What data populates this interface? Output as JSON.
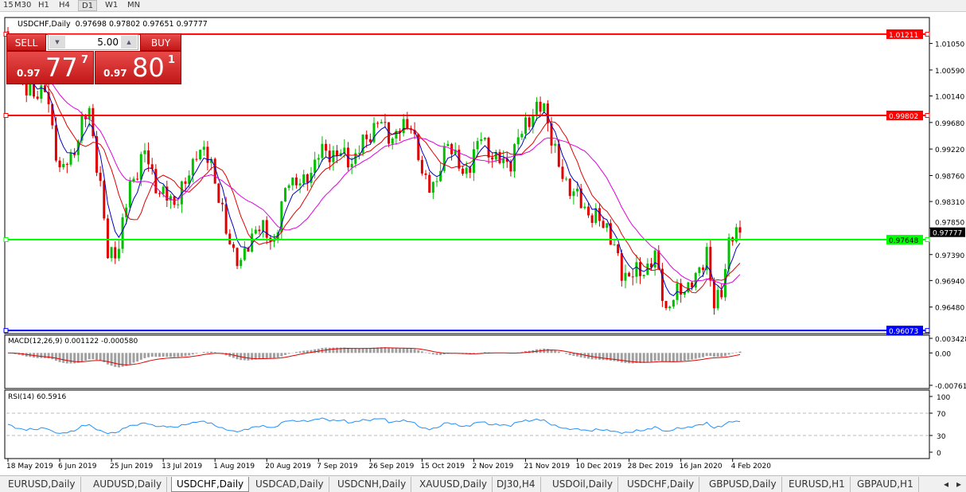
{
  "timeframes": {
    "items": [
      "15",
      "M30",
      "H1",
      "H4",
      "D1",
      "W1",
      "MN"
    ],
    "selected": "D1"
  },
  "chart": {
    "symbol_title": "USDCHF,Daily",
    "ohlc": "0.97698 0.97802 0.97651 0.97777",
    "colors": {
      "bull": "#00c000",
      "bear": "#e00000",
      "ma_fast": "#0000c0",
      "ma_mid": "#e00000",
      "ma_slow": "#e000e0",
      "macd_hist": "#a0a0a0",
      "macd_signal": "#e00000",
      "rsi": "#1e90ff"
    },
    "price_axis": {
      "min": 0.9602,
      "max": 1.015,
      "ticks": [
        "1.01050",
        "1.00590",
        "1.00140",
        "0.99680",
        "0.99220",
        "0.98760",
        "0.98310",
        "0.97850",
        "0.97390",
        "0.96940",
        "0.96480"
      ]
    },
    "hlines": [
      {
        "price": 1.01211,
        "label": "1.01211",
        "color": "#ff0000"
      },
      {
        "price": 0.99802,
        "label": "0.99802",
        "color": "#ff0000"
      },
      {
        "price": 0.97648,
        "label": "0.97648",
        "color": "#00ff00"
      },
      {
        "price": 0.96073,
        "label": "0.96073",
        "color": "#0000ff"
      }
    ],
    "current_price": {
      "price": 0.97777,
      "label": "0.97777"
    },
    "bar_count": 198,
    "closes_by_bar": [
      [
        0,
        1.0108
      ],
      [
        5,
        1.0018
      ],
      [
        10,
        1.0025
      ],
      [
        14,
        0.9887
      ],
      [
        17,
        0.9901
      ],
      [
        20,
        0.997
      ],
      [
        22,
        0.9984
      ],
      [
        25,
        0.9859
      ],
      [
        27,
        0.9734
      ],
      [
        30,
        0.9755
      ],
      [
        33,
        0.9859
      ],
      [
        37,
        0.9915
      ],
      [
        41,
        0.9845
      ],
      [
        45,
        0.9831
      ],
      [
        48,
        0.9859
      ],
      [
        51,
        0.9921
      ],
      [
        55,
        0.9901
      ],
      [
        59,
        0.9776
      ],
      [
        63,
        0.972
      ],
      [
        67,
        0.979
      ],
      [
        72,
        0.9762
      ],
      [
        76,
        0.9873
      ],
      [
        80,
        0.9859
      ],
      [
        84,
        0.9915
      ],
      [
        89,
        0.9915
      ],
      [
        93,
        0.9901
      ],
      [
        100,
        0.997
      ],
      [
        104,
        0.9942
      ],
      [
        109,
        0.997
      ],
      [
        112,
        0.9873
      ],
      [
        116,
        0.9859
      ],
      [
        119,
        0.9942
      ],
      [
        123,
        0.9873
      ],
      [
        128,
        0.9942
      ],
      [
        132,
        0.9901
      ],
      [
        136,
        0.9901
      ],
      [
        140,
        0.997
      ],
      [
        145,
        0.9998
      ],
      [
        149,
        0.9887
      ],
      [
        153,
        0.9845
      ],
      [
        158,
        0.9804
      ],
      [
        162,
        0.979
      ],
      [
        166,
        0.9706
      ],
      [
        171,
        0.9706
      ],
      [
        175,
        0.9734
      ],
      [
        178,
        0.9644
      ],
      [
        182,
        0.9679
      ],
      [
        186,
        0.9693
      ],
      [
        189,
        0.9748
      ],
      [
        191,
        0.9644
      ],
      [
        193,
        0.9679
      ],
      [
        195,
        0.9762
      ],
      [
        198,
        0.9777
      ]
    ]
  },
  "trade_panel": {
    "sell_label": "SELL",
    "buy_label": "BUY",
    "volume": "5.00",
    "sell_prefix": "0.97",
    "sell_big": "77",
    "sell_sup": "7",
    "buy_prefix": "0.97",
    "buy_big": "80",
    "buy_sup": "1"
  },
  "macd": {
    "title": "MACD(12,26,9) 0.001122 -0.000580",
    "ticks": [
      "0.003428",
      "0.00",
      "-0.007615"
    ],
    "max": 0.003428,
    "min": -0.007615
  },
  "rsi": {
    "title": "RSI(14) 60.5916",
    "ticks": [
      "100",
      "70",
      "30",
      "0"
    ],
    "value": 60.5916
  },
  "date_axis": [
    "18 May 2019",
    "6 Jun 2019",
    "25 Jun 2019",
    "13 Jul 2019",
    "1 Aug 2019",
    "20 Aug 2019",
    "7 Sep 2019",
    "26 Sep 2019",
    "15 Oct 2019",
    "2 Nov 2019",
    "21 Nov 2019",
    "10 Dec 2019",
    "28 Dec 2019",
    "16 Jan 2020",
    "4 Feb 2020"
  ],
  "tabs": {
    "items": [
      "EURUSD,Daily",
      "AUDUSD,Daily",
      "USDCHF,Daily",
      "USDCAD,Daily",
      "USDCNH,Daily",
      "XAUUSD,Daily",
      "DJ30,H4",
      "USDOil,Daily",
      "USDCHF,Daily",
      "GBPUSD,Daily",
      "EURUSD,H1",
      "GBPAUD,H1"
    ],
    "selected": 2
  }
}
